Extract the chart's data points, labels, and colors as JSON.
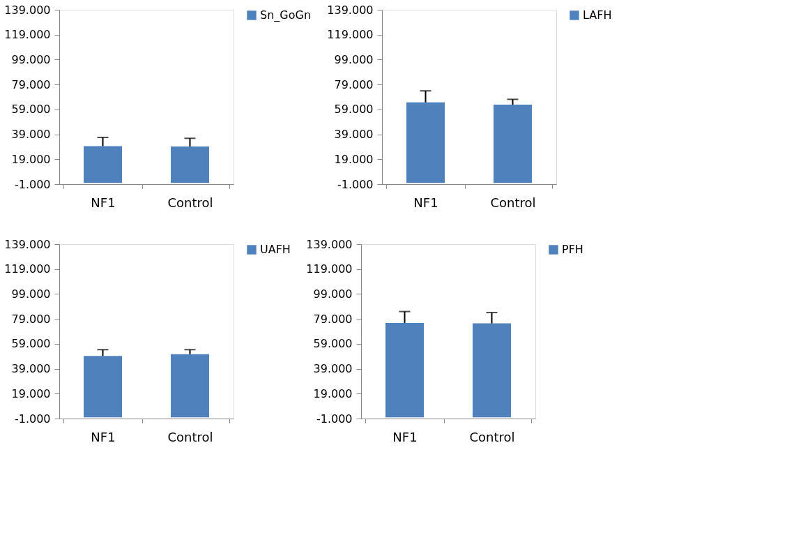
{
  "chart_data": [
    {
      "type": "bar",
      "categories": [
        "NF1",
        "Control"
      ],
      "series": [
        {
          "name": "Sn_GoGn",
          "color": "#4f81bd",
          "values": [
            29.5,
            29.2
          ],
          "errors": [
            [
              29.5,
              36.5
            ],
            [
              29.2,
              35.8
            ]
          ]
        }
      ],
      "ylim": [
        -1,
        139
      ],
      "yticks": [
        {
          "value": -1,
          "label": "-1.000"
        },
        {
          "value": 19,
          "label": "19.000"
        },
        {
          "value": 39,
          "label": "39.000"
        },
        {
          "value": 59,
          "label": "59.000"
        },
        {
          "value": 79,
          "label": "79.000"
        },
        {
          "value": 99,
          "label": "99.000"
        },
        {
          "value": 119,
          "label": "119.000"
        },
        {
          "value": 139,
          "label": "139.000"
        }
      ],
      "legend": "right",
      "grid": false
    },
    {
      "type": "bar",
      "categories": [
        "NF1",
        "Control"
      ],
      "series": [
        {
          "name": "LAFH",
          "color": "#4f81bd",
          "values": [
            64.6,
            62.8
          ],
          "errors": [
            [
              64.6,
              73.9
            ],
            [
              62.8,
              67.1
            ]
          ]
        }
      ],
      "ylim": [
        -1,
        139
      ],
      "yticks": [
        {
          "value": -1,
          "label": "-1.000"
        },
        {
          "value": 19,
          "label": "19.000"
        },
        {
          "value": 39,
          "label": "39.000"
        },
        {
          "value": 59,
          "label": "59.000"
        },
        {
          "value": 79,
          "label": "79.000"
        },
        {
          "value": 99,
          "label": "99.000"
        },
        {
          "value": 119,
          "label": "119.000"
        },
        {
          "value": 139,
          "label": "139.000"
        }
      ],
      "legend": "right",
      "grid": false
    },
    {
      "type": "bar",
      "categories": [
        "NF1",
        "Control"
      ],
      "series": [
        {
          "name": "UAFH",
          "color": "#4f81bd",
          "values": [
            49.3,
            50.6
          ],
          "errors": [
            [
              49.3,
              54.3
            ],
            [
              50.6,
              54.3
            ]
          ]
        }
      ],
      "ylim": [
        -1,
        139
      ],
      "yticks": [
        {
          "value": -1,
          "label": "-1.000"
        },
        {
          "value": 19,
          "label": "19.000"
        },
        {
          "value": 39,
          "label": "39.000"
        },
        {
          "value": 59,
          "label": "59.000"
        },
        {
          "value": 79,
          "label": "79.000"
        },
        {
          "value": 99,
          "label": "99.000"
        },
        {
          "value": 119,
          "label": "119.000"
        },
        {
          "value": 139,
          "label": "139.000"
        }
      ],
      "legend": "right",
      "grid": false
    },
    {
      "type": "bar",
      "categories": [
        "NF1",
        "Control"
      ],
      "series": [
        {
          "name": "PFH",
          "color": "#4f81bd",
          "values": [
            75.7,
            75.4
          ],
          "errors": [
            [
              75.7,
              84.9
            ],
            [
              75.4,
              84.1
            ]
          ]
        }
      ],
      "ylim": [
        -1,
        139
      ],
      "yticks": [
        {
          "value": -1,
          "label": "-1.000"
        },
        {
          "value": 19,
          "label": "19.000"
        },
        {
          "value": 39,
          "label": "39.000"
        },
        {
          "value": 59,
          "label": "59.000"
        },
        {
          "value": 79,
          "label": "79.000"
        },
        {
          "value": 99,
          "label": "99.000"
        },
        {
          "value": 119,
          "label": "119.000"
        },
        {
          "value": 139,
          "label": "139.000"
        }
      ],
      "legend": "right",
      "grid": false
    }
  ]
}
